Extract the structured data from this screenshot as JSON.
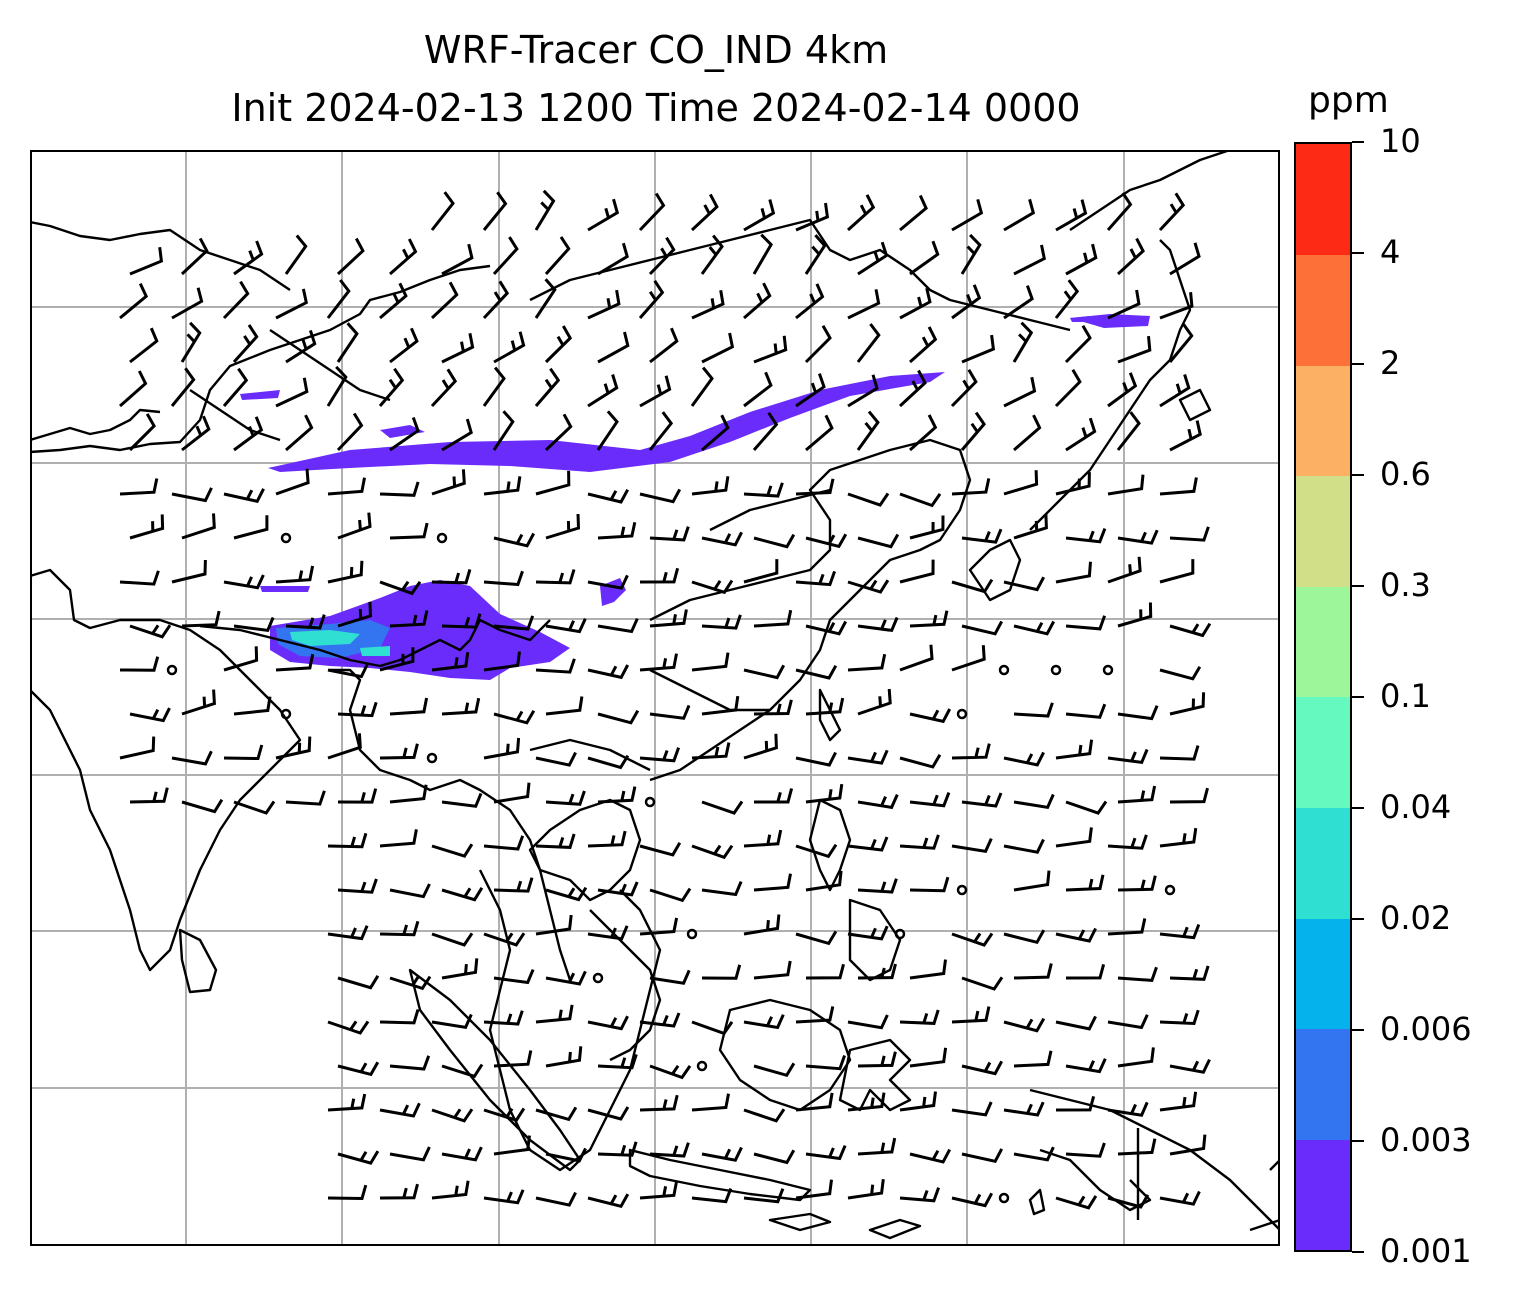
{
  "title": {
    "line1": "WRF-Tracer CO_IND 4km",
    "line2": "Init 2024-02-13 1200 Time 2024-02-14 0000"
  },
  "colorbar": {
    "unit": "ppm",
    "ticks": [
      "0.001",
      "0.003",
      "0.006",
      "0.02",
      "0.04",
      "0.1",
      "0.3",
      "0.6",
      "2",
      "4",
      "10"
    ],
    "colors": [
      "#6a2cfa",
      "#3374f0",
      "#06b2ec",
      "#2fdfd2",
      "#66f9bf",
      "#9df79a",
      "#d1e088",
      "#fcb063",
      "#fd7138",
      "#fd2a15"
    ]
  },
  "map": {
    "gridline_color": "#b0b0b0",
    "coastline_color": "#000000",
    "tracer_colors": {
      "lowest": "#6a2cfa",
      "low": "#3374f0",
      "mid": "#2fdfd2"
    },
    "wind_barbs": "black"
  }
}
